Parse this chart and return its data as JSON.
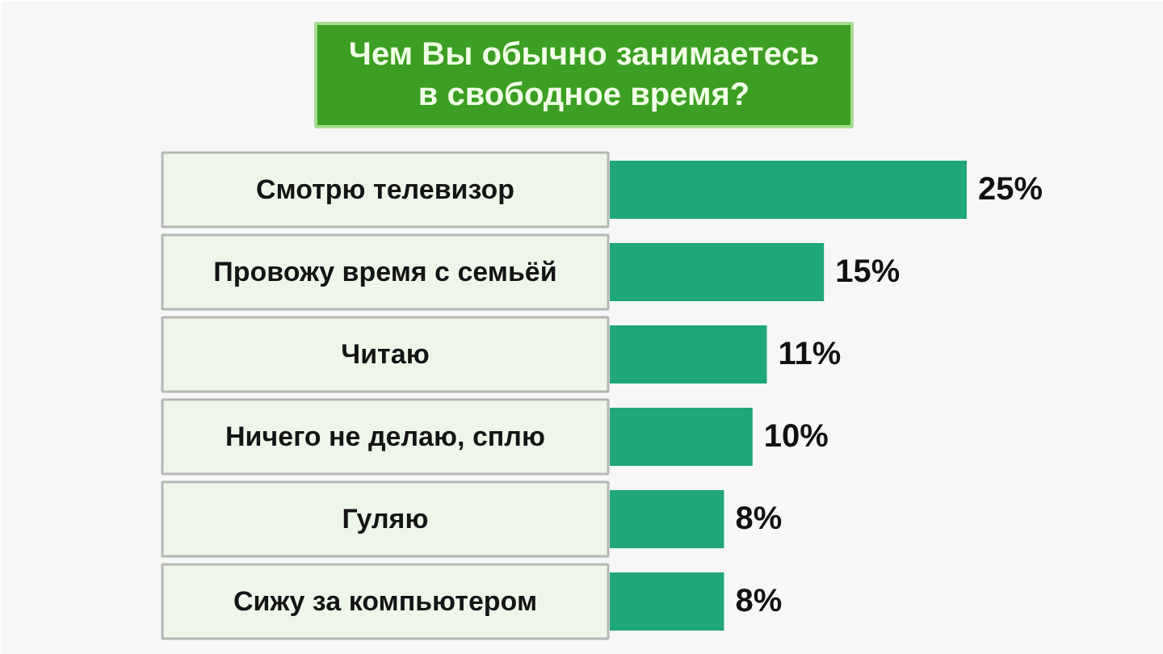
{
  "chart_data": {
    "type": "bar",
    "orientation": "horizontal",
    "title": "Чем Вы обычно занимаетесь в свободное время?",
    "categories": [
      "Смотрю телевизор",
      "Провожу время с семьёй",
      "Читаю",
      "Ничего не делаю, сплю",
      "Гуляю",
      "Сижу за компьютером"
    ],
    "values": [
      25,
      15,
      11,
      10,
      8,
      8
    ],
    "value_labels": [
      "25%",
      "15%",
      "11%",
      "10%",
      "8%",
      "8%"
    ],
    "color": "#1fa67a",
    "tick_labels": "y"
  }
}
